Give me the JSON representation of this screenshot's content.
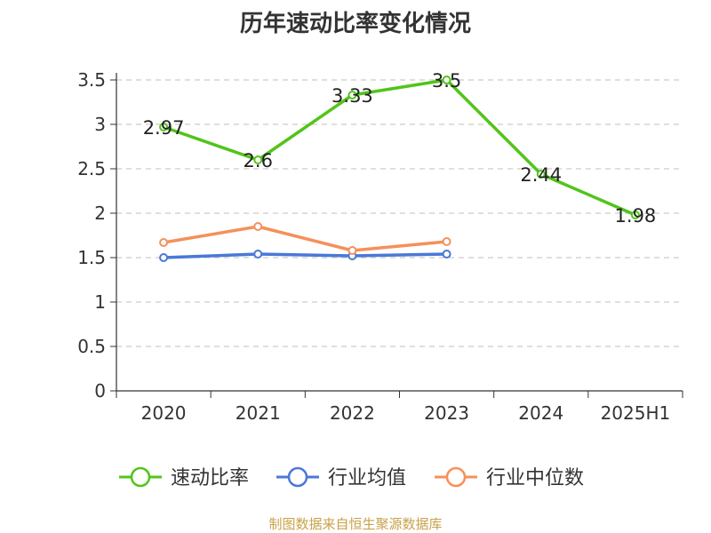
{
  "chart_data": {
    "type": "line",
    "title": "历年速动比率变化情况",
    "categories": [
      "2020",
      "2021",
      "2022",
      "2023",
      "2024",
      "2025H1"
    ],
    "series": [
      {
        "name": "速动比率",
        "values": [
          2.97,
          2.6,
          3.33,
          3.5,
          2.44,
          1.98
        ],
        "color": "#52c41a",
        "labels": true
      },
      {
        "name": "行业均值",
        "values": [
          1.5,
          1.54,
          1.52,
          1.54,
          null,
          null
        ],
        "color": "#4a78d8",
        "labels": false
      },
      {
        "name": "行业中位数",
        "values": [
          1.67,
          1.85,
          1.58,
          1.68,
          null,
          null
        ],
        "color": "#f5905a",
        "labels": false
      }
    ],
    "ylim": [
      0,
      3.5
    ],
    "yticks": [
      0,
      0.5,
      1,
      1.5,
      2,
      2.5,
      3,
      3.5
    ],
    "grid": true,
    "legend_position": "bottom"
  },
  "source_text": "制图数据来自恒生聚源数据库",
  "source_color": "#c8a24a"
}
